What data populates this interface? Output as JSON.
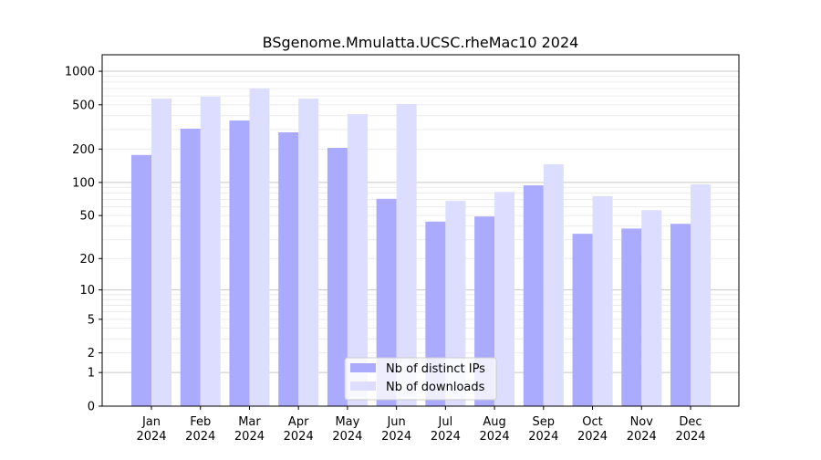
{
  "chart_data": {
    "type": "bar",
    "title": "BSgenome.Mmulatta.UCSC.rheMac10 2024",
    "xlabel": "",
    "ylabel": "",
    "y_scale": "log(1+y)",
    "ylim": [
      0,
      1300
    ],
    "y_ticks": [
      0,
      1,
      2,
      5,
      10,
      20,
      50,
      100,
      200,
      500,
      1000
    ],
    "grid": true,
    "legend_position": "bottom-center",
    "categories": [
      "Jan\n2024",
      "Feb\n2024",
      "Mar\n2024",
      "Apr\n2024",
      "May\n2024",
      "Jun\n2024",
      "Jul\n2024",
      "Aug\n2024",
      "Sep\n2024",
      "Oct\n2024",
      "Nov\n2024",
      "Dec\n2024"
    ],
    "series": [
      {
        "name": "Nb of distinct IPs",
        "color": "#aaaaff",
        "values": [
          177,
          305,
          361,
          283,
          205,
          71,
          44,
          49,
          94,
          34,
          38,
          42
        ]
      },
      {
        "name": "Nb of downloads",
        "color": "#ddddff",
        "values": [
          569,
          591,
          700,
          569,
          413,
          508,
          68,
          82,
          146,
          75,
          56,
          96
        ]
      }
    ]
  }
}
